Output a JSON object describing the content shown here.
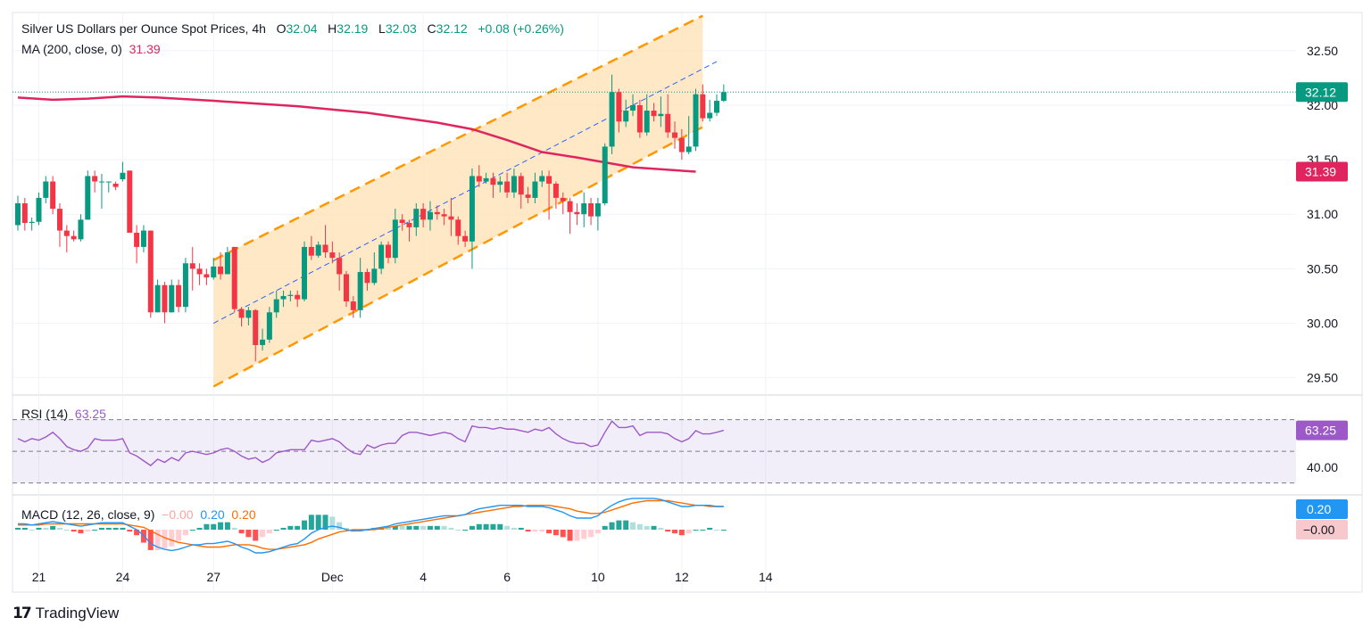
{
  "header": {
    "symbol": "Silver US Dollars per Ounce Spot Prices, 4h",
    "o_label": "O",
    "o_val": "32.04",
    "h_label": "H",
    "h_val": "32.19",
    "l_label": "L",
    "l_val": "32.03",
    "c_label": "C",
    "c_val": "32.12",
    "change": "+0.08 (+0.26%)"
  },
  "ma_legend": {
    "label": "MA (200, close, 0)",
    "value": "31.39"
  },
  "rsi_legend": {
    "label": "RSI (14)",
    "value": "63.25"
  },
  "macd_legend": {
    "label": "MACD (12, 26, close, 9)",
    "hist": "−0.00",
    "macd": "0.20",
    "signal": "0.20"
  },
  "brand": {
    "name": "TradingView"
  },
  "colors": {
    "up": "#089981",
    "down": "#f23645",
    "ma": "#e0245e",
    "channel": "#ff9800",
    "channel_fill": "#ffe0b2",
    "mid": "#2962ff",
    "rsi": "#9c59c7",
    "macd": "#2196f3",
    "signal": "#ff6d00"
  },
  "chart_data": {
    "type": "candlestick",
    "title": "Silver US Dollars per Ounce Spot Prices, 4h",
    "price_axis_ticks": [
      "32.50",
      "32.00",
      "31.50",
      "31.00",
      "30.50",
      "30.00",
      "29.50"
    ],
    "ylim": [
      29.35,
      32.85
    ],
    "x_tick_labels": [
      {
        "label": "21",
        "bar": 3
      },
      {
        "label": "24",
        "bar": 15
      },
      {
        "label": "27",
        "bar": 28
      },
      {
        "label": "Dec",
        "bar": 45
      },
      {
        "label": "4",
        "bar": 58
      },
      {
        "label": "6",
        "bar": 70
      },
      {
        "label": "10",
        "bar": 83
      },
      {
        "label": "12",
        "bar": 95
      },
      {
        "label": "14",
        "bar": 107
      }
    ],
    "candles": [
      [
        30.9,
        31.1,
        31.17,
        30.85
      ],
      [
        31.1,
        30.92,
        31.15,
        30.85
      ],
      [
        30.92,
        30.93,
        30.97,
        30.85
      ],
      [
        30.93,
        31.15,
        31.2,
        30.9
      ],
      [
        31.15,
        31.3,
        31.35,
        31.1
      ],
      [
        31.3,
        31.05,
        31.35,
        31.0
      ],
      [
        31.05,
        30.85,
        31.1,
        30.7
      ],
      [
        30.85,
        30.8,
        30.9,
        30.65
      ],
      [
        30.8,
        30.77,
        30.85,
        30.75
      ],
      [
        30.77,
        30.95,
        31.0,
        30.75
      ],
      [
        30.95,
        31.35,
        31.4,
        30.95
      ],
      [
        31.35,
        31.3,
        31.4,
        31.2
      ],
      [
        31.3,
        31.3,
        31.37,
        31.05
      ],
      [
        31.3,
        31.3,
        31.3,
        31.2
      ],
      [
        31.28,
        31.25,
        31.3,
        31.22
      ],
      [
        31.32,
        31.38,
        31.48,
        31.3
      ],
      [
        31.4,
        30.83,
        31.4,
        30.83
      ],
      [
        30.83,
        30.7,
        30.9,
        30.55
      ],
      [
        30.7,
        30.85,
        30.9,
        30.65
      ],
      [
        30.85,
        30.1,
        30.85,
        30.05
      ],
      [
        30.1,
        30.35,
        30.4,
        30.1
      ],
      [
        30.35,
        30.1,
        30.38,
        30.0
      ],
      [
        30.1,
        30.35,
        30.4,
        30.1
      ],
      [
        30.35,
        30.15,
        30.4,
        30.1
      ],
      [
        30.15,
        30.55,
        30.6,
        30.1
      ],
      [
        30.55,
        30.5,
        30.7,
        30.3
      ],
      [
        30.5,
        30.45,
        30.55,
        30.35
      ],
      [
        30.45,
        30.42,
        30.5,
        30.35
      ],
      [
        30.42,
        30.52,
        30.6,
        30.4
      ],
      [
        30.52,
        30.45,
        30.65,
        30.4
      ],
      [
        30.45,
        30.65,
        30.7,
        30.45
      ],
      [
        30.7,
        30.13,
        30.7,
        30.1
      ],
      [
        30.13,
        30.05,
        30.15,
        29.97
      ],
      [
        30.05,
        30.12,
        30.15,
        29.98
      ],
      [
        30.12,
        29.8,
        30.13,
        29.65
      ],
      [
        29.8,
        29.85,
        29.95,
        29.75
      ],
      [
        29.85,
        30.1,
        30.15,
        29.82
      ],
      [
        30.1,
        30.22,
        30.3,
        30.05
      ],
      [
        30.22,
        30.25,
        30.3,
        30.15
      ],
      [
        30.25,
        30.26,
        30.3,
        30.2
      ],
      [
        30.26,
        30.22,
        30.3,
        30.15
      ],
      [
        30.22,
        30.7,
        30.75,
        30.2
      ],
      [
        30.7,
        30.62,
        30.8,
        30.58
      ],
      [
        30.62,
        30.72,
        30.75,
        30.6
      ],
      [
        30.72,
        30.65,
        30.9,
        30.6
      ],
      [
        30.65,
        30.6,
        30.75,
        30.55
      ],
      [
        30.6,
        30.45,
        30.65,
        30.3
      ],
      [
        30.45,
        30.2,
        30.48,
        30.15
      ],
      [
        30.2,
        30.12,
        30.25,
        30.05
      ],
      [
        30.12,
        30.47,
        30.6,
        30.05
      ],
      [
        30.47,
        30.37,
        30.5,
        30.3
      ],
      [
        30.37,
        30.5,
        30.65,
        30.35
      ],
      [
        30.5,
        30.72,
        30.75,
        30.45
      ],
      [
        30.72,
        30.6,
        30.75,
        30.55
      ],
      [
        30.6,
        30.95,
        31.05,
        30.55
      ],
      [
        30.95,
        30.92,
        31.0,
        30.85
      ],
      [
        30.92,
        30.88,
        30.95,
        30.75
      ],
      [
        30.88,
        31.05,
        31.1,
        30.8
      ],
      [
        31.05,
        30.95,
        31.1,
        30.88
      ],
      [
        30.95,
        31.02,
        31.12,
        30.85
      ],
      [
        31.02,
        31.0,
        31.08,
        30.95
      ],
      [
        31.0,
        30.98,
        31.05,
        30.9
      ],
      [
        30.98,
        30.95,
        31.15,
        30.8
      ],
      [
        30.95,
        30.8,
        30.98,
        30.72
      ],
      [
        30.8,
        30.75,
        30.85,
        30.7
      ],
      [
        30.75,
        31.35,
        31.42,
        30.5
      ],
      [
        31.35,
        31.3,
        31.45,
        31.25
      ],
      [
        31.3,
        31.33,
        31.38,
        31.28
      ],
      [
        31.33,
        31.27,
        31.38,
        31.15
      ],
      [
        31.27,
        31.3,
        31.35,
        31.2
      ],
      [
        31.3,
        31.2,
        31.38,
        31.15
      ],
      [
        31.2,
        31.35,
        31.42,
        31.15
      ],
      [
        31.35,
        31.18,
        31.38,
        31.05
      ],
      [
        31.18,
        31.15,
        31.25,
        31.1
      ],
      [
        31.15,
        31.3,
        31.38,
        31.1
      ],
      [
        31.3,
        31.35,
        31.4,
        31.25
      ],
      [
        31.35,
        31.28,
        31.4,
        30.95
      ],
      [
        31.28,
        31.15,
        31.3,
        31.05
      ],
      [
        31.15,
        31.12,
        31.2,
        31.0
      ],
      [
        31.12,
        31.02,
        31.15,
        30.82
      ],
      [
        31.02,
        31.0,
        31.1,
        30.9
      ],
      [
        31.0,
        31.1,
        31.2,
        30.88
      ],
      [
        31.1,
        30.98,
        31.15,
        30.9
      ],
      [
        30.98,
        31.1,
        31.15,
        30.85
      ],
      [
        31.1,
        31.62,
        31.65,
        31.08
      ],
      [
        31.62,
        32.12,
        32.28,
        31.55
      ],
      [
        32.12,
        31.85,
        32.15,
        31.75
      ],
      [
        31.85,
        31.95,
        32.05,
        31.8
      ],
      [
        31.95,
        32.0,
        32.1,
        31.9
      ],
      [
        32.0,
        31.75,
        32.05,
        31.7
      ],
      [
        31.75,
        31.95,
        32.1,
        31.72
      ],
      [
        31.95,
        31.9,
        32.02,
        31.85
      ],
      [
        31.9,
        31.92,
        32.08,
        31.8
      ],
      [
        31.92,
        31.75,
        32.1,
        31.7
      ],
      [
        31.75,
        31.7,
        31.85,
        31.6
      ],
      [
        31.7,
        31.57,
        31.78,
        31.5
      ],
      [
        31.57,
        31.62,
        31.9,
        31.55
      ],
      [
        31.62,
        32.1,
        32.15,
        31.58
      ],
      [
        32.1,
        31.88,
        32.19,
        31.85
      ],
      [
        31.88,
        31.93,
        32.05,
        31.85
      ],
      [
        31.93,
        32.04,
        32.1,
        31.9
      ],
      [
        32.04,
        32.12,
        32.19,
        32.03
      ]
    ],
    "ma200": [
      [
        0,
        32.07
      ],
      [
        5,
        32.05
      ],
      [
        10,
        32.06
      ],
      [
        15,
        32.08
      ],
      [
        20,
        32.07
      ],
      [
        28,
        32.04
      ],
      [
        40,
        31.99
      ],
      [
        50,
        31.93
      ],
      [
        60,
        31.84
      ],
      [
        65,
        31.78
      ],
      [
        70,
        31.68
      ],
      [
        75,
        31.57
      ],
      [
        80,
        31.52
      ],
      [
        88,
        31.43
      ],
      [
        97,
        31.39
      ]
    ],
    "channel_upper": [
      [
        28,
        30.58
      ],
      [
        98,
        32.82
      ]
    ],
    "channel_lower": [
      [
        28,
        29.42
      ],
      [
        98,
        31.8
      ]
    ],
    "channel_mid": [
      [
        28,
        30.0
      ],
      [
        100,
        32.4
      ]
    ],
    "last_price": {
      "value": 32.12,
      "label": "32.12"
    },
    "ma_last": {
      "value": 31.39,
      "label": "31.39"
    },
    "rsi": {
      "values": [
        58,
        56,
        58,
        57,
        59,
        62,
        58,
        53,
        51,
        50,
        52,
        58,
        57,
        57,
        57,
        58,
        49,
        47,
        44,
        41,
        45,
        43,
        46,
        44,
        49,
        50,
        49,
        48,
        49,
        51,
        52,
        50,
        47,
        45,
        46,
        43,
        45,
        49,
        50,
        51,
        51,
        51,
        57,
        56,
        57,
        58,
        56,
        52,
        49,
        48,
        54,
        52,
        54,
        55,
        55,
        60,
        62,
        62,
        61,
        60,
        61,
        62,
        61,
        58,
        56,
        66,
        65,
        65,
        64,
        65,
        64,
        64,
        63,
        62,
        64,
        63,
        65,
        61,
        58,
        56,
        55,
        55,
        53,
        54,
        62,
        69,
        65,
        65,
        66,
        60,
        62,
        62,
        62,
        61,
        58,
        56,
        58,
        63,
        61,
        61,
        62,
        63.25
      ],
      "upper": 70,
      "lower": 30,
      "mid": 50,
      "tick": "40.00",
      "last_label": "63.25"
    },
    "macd": {
      "macd_line": [
        0.05,
        0.05,
        0.04,
        0.05,
        0.06,
        0.07,
        0.06,
        0.05,
        0.04,
        0.03,
        0.04,
        0.05,
        0.06,
        0.06,
        0.06,
        0.06,
        0.03,
        0.0,
        -0.05,
        -0.12,
        -0.15,
        -0.17,
        -0.18,
        -0.17,
        -0.15,
        -0.13,
        -0.13,
        -0.12,
        -0.12,
        -0.11,
        -0.1,
        -0.12,
        -0.15,
        -0.17,
        -0.2,
        -0.2,
        -0.19,
        -0.17,
        -0.15,
        -0.13,
        -0.12,
        -0.08,
        -0.03,
        0.0,
        0.02,
        0.03,
        0.02,
        0.0,
        -0.01,
        -0.01,
        0.0,
        0.01,
        0.02,
        0.03,
        0.05,
        0.06,
        0.07,
        0.08,
        0.09,
        0.1,
        0.11,
        0.12,
        0.12,
        0.12,
        0.13,
        0.16,
        0.18,
        0.19,
        0.2,
        0.21,
        0.21,
        0.21,
        0.21,
        0.2,
        0.2,
        0.2,
        0.19,
        0.17,
        0.15,
        0.12,
        0.1,
        0.1,
        0.1,
        0.12,
        0.17,
        0.21,
        0.24,
        0.26,
        0.27,
        0.27,
        0.27,
        0.27,
        0.26,
        0.24,
        0.22,
        0.2,
        0.2,
        0.21,
        0.21,
        0.21,
        0.2,
        0.2
      ],
      "signal_line": [
        0.04,
        0.04,
        0.04,
        0.04,
        0.05,
        0.05,
        0.05,
        0.05,
        0.05,
        0.05,
        0.05,
        0.05,
        0.05,
        0.05,
        0.05,
        0.05,
        0.04,
        0.03,
        0.02,
        -0.01,
        -0.04,
        -0.07,
        -0.09,
        -0.11,
        -0.12,
        -0.13,
        -0.14,
        -0.15,
        -0.15,
        -0.15,
        -0.14,
        -0.13,
        -0.13,
        -0.13,
        -0.14,
        -0.16,
        -0.17,
        -0.17,
        -0.16,
        -0.15,
        -0.14,
        -0.13,
        -0.11,
        -0.08,
        -0.06,
        -0.04,
        -0.02,
        -0.01,
        0.0,
        0.0,
        0.0,
        0.0,
        0.01,
        0.02,
        0.03,
        0.04,
        0.05,
        0.06,
        0.07,
        0.08,
        0.09,
        0.1,
        0.11,
        0.12,
        0.13,
        0.14,
        0.15,
        0.16,
        0.17,
        0.18,
        0.19,
        0.2,
        0.2,
        0.21,
        0.21,
        0.21,
        0.21,
        0.2,
        0.19,
        0.18,
        0.16,
        0.15,
        0.14,
        0.14,
        0.15,
        0.17,
        0.19,
        0.21,
        0.23,
        0.24,
        0.25,
        0.25,
        0.25,
        0.25,
        0.24,
        0.23,
        0.22,
        0.21,
        0.21,
        0.2,
        0.2,
        0.2
      ],
      "macd_last_label": "0.20",
      "hist_last_label": "−0.00"
    }
  }
}
